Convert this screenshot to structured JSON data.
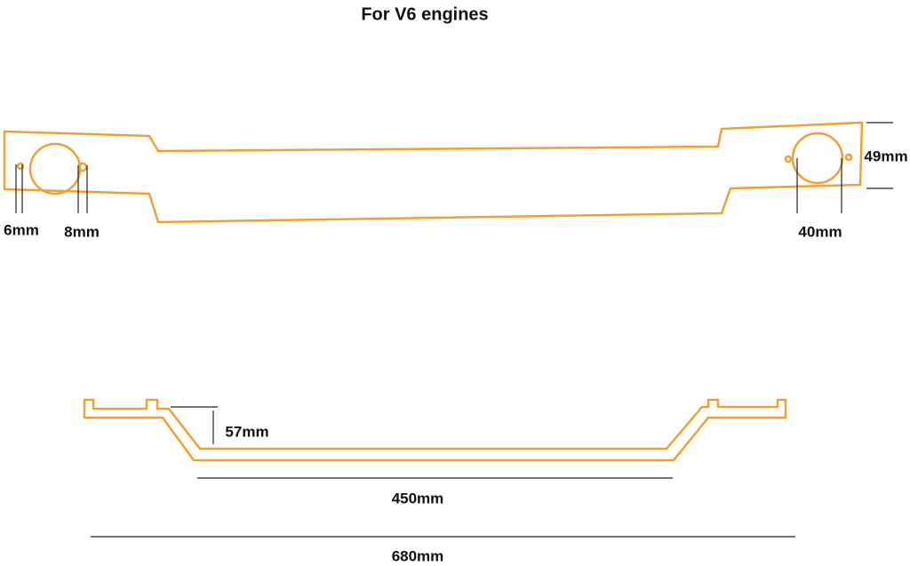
{
  "header": {
    "title": "For V6 engines"
  },
  "labels": {
    "hole_small": "6mm",
    "hole_medium": "8mm",
    "hole_large": "40mm",
    "plate_height": "49mm",
    "drop_depth": "57mm",
    "inner_length": "450mm",
    "total_length": "680mm"
  }
}
